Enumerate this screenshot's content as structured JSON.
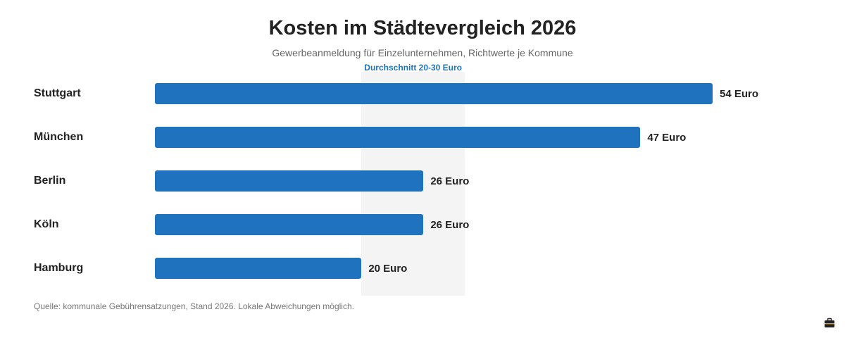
{
  "chart_data": {
    "type": "bar",
    "orientation": "horizontal",
    "title": "Kosten im Städtevergleich 2026",
    "subtitle": "Gewerbeanmeldung für Einzelunternehmen, Richtwerte je Kommune",
    "categories": [
      "Stuttgart",
      "München",
      "Berlin",
      "Köln",
      "Hamburg"
    ],
    "values": [
      54,
      47,
      26,
      26,
      20
    ],
    "value_labels": [
      "54 Euro",
      "47 Euro",
      "26 Euro",
      "26 Euro",
      "20 Euro"
    ],
    "xlim": [
      0,
      54
    ],
    "grid": false,
    "reference_band": {
      "from": 20,
      "to": 30,
      "label": "Durchschnitt 20-30 Euro"
    },
    "source": "Quelle: kommunale Gebührensatzungen, Stand 2026. Lokale Abweichungen möglich."
  },
  "colors": {
    "bar": "#1f73be",
    "band": "#f4f4f4",
    "band_label": "#1f73be",
    "text": "#222222"
  },
  "icons": {
    "corner": "briefcase-icon"
  }
}
